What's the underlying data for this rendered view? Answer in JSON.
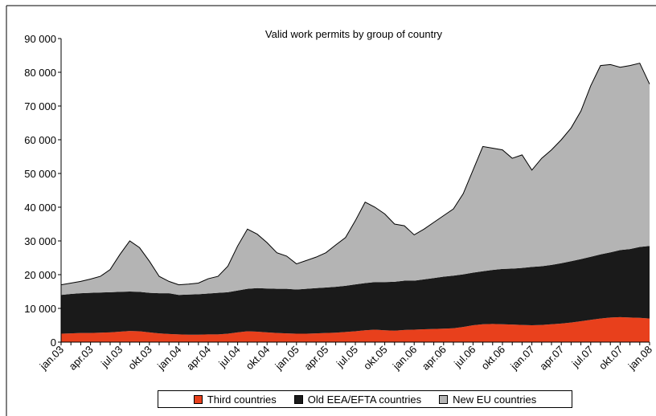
{
  "chart_data": {
    "type": "stacked_area",
    "title": "Valid work permits by group of country",
    "categories": [
      "jan.03",
      null,
      null,
      "apr.03",
      null,
      null,
      "jul.03",
      null,
      null,
      "okt.03",
      null,
      null,
      "jan.04",
      null,
      null,
      "apr.04",
      null,
      null,
      "jul.04",
      null,
      null,
      "okt.04",
      null,
      null,
      "jan.05",
      null,
      null,
      "apr.05",
      null,
      null,
      "jul.05",
      null,
      null,
      "okt.05",
      null,
      null,
      "jan.06",
      null,
      null,
      "apr.06",
      null,
      null,
      "jul.06",
      null,
      null,
      "okt.06",
      null,
      null,
      "jan.07",
      null,
      null,
      "apr.07",
      null,
      null,
      "jul.07",
      null,
      null,
      "okt.07",
      null,
      null,
      "jan.08"
    ],
    "series": [
      {
        "name": "Third countries",
        "color": "#e8401c",
        "values": [
          2500,
          2600,
          2700,
          2700,
          2800,
          2900,
          3100,
          3300,
          3200,
          2900,
          2600,
          2400,
          2300,
          2200,
          2200,
          2300,
          2300,
          2500,
          2900,
          3200,
          3100,
          2900,
          2700,
          2600,
          2500,
          2500,
          2600,
          2700,
          2800,
          3000,
          3200,
          3500,
          3700,
          3500,
          3400,
          3600,
          3700,
          3800,
          3900,
          4000,
          4100,
          4500,
          5000,
          5300,
          5400,
          5300,
          5200,
          5100,
          5000,
          5100,
          5300,
          5500,
          5800,
          6200,
          6600,
          7000,
          7300,
          7400,
          7300,
          7200,
          7000
        ]
      },
      {
        "name": "Old EEA/EFTA countries",
        "color": "#1a1a1a",
        "values": [
          11500,
          11700,
          11800,
          11900,
          11900,
          11900,
          11800,
          11700,
          11700,
          11700,
          11900,
          12100,
          11700,
          11900,
          12000,
          12100,
          12300,
          12300,
          12400,
          12600,
          12900,
          13000,
          13100,
          13200,
          13100,
          13300,
          13400,
          13500,
          13600,
          13700,
          13900,
          14000,
          14100,
          14300,
          14500,
          14600,
          14500,
          14800,
          15100,
          15400,
          15600,
          15600,
          15600,
          15700,
          16000,
          16400,
          16600,
          16900,
          17300,
          17400,
          17600,
          17900,
          18200,
          18400,
          18700,
          19000,
          19300,
          19900,
          20300,
          21000,
          21500
        ]
      },
      {
        "name": "New EU countries",
        "color": "#b4b4b4",
        "values": [
          3000,
          3200,
          3500,
          4100,
          4800,
          6700,
          11100,
          15000,
          13100,
          9400,
          5000,
          3500,
          3000,
          3100,
          3300,
          4400,
          4900,
          7700,
          13200,
          17700,
          16000,
          13600,
          10700,
          9700,
          7600,
          8400,
          9200,
          10300,
          12400,
          14300,
          18900,
          24000,
          22200,
          20200,
          17100,
          16300,
          13600,
          14900,
          16500,
          18100,
          19800,
          23900,
          30400,
          37000,
          36100,
          35300,
          32700,
          33500,
          28700,
          32000,
          34100,
          36600,
          39500,
          43900,
          50700,
          56000,
          55700,
          54200,
          54400,
          54500,
          48000
        ]
      }
    ],
    "ylim": [
      0,
      90000
    ],
    "yticks": [
      0,
      {
        "value": 10000,
        "label": "10 000"
      },
      {
        "value": 20000,
        "label": "20 000"
      },
      {
        "value": 30000,
        "label": "30 000"
      },
      {
        "value": 40000,
        "label": "40 000"
      },
      {
        "value": 50000,
        "label": "50 000"
      },
      {
        "value": 60000,
        "label": "60 000"
      },
      {
        "value": 70000,
        "label": "70 000"
      },
      {
        "value": 80000,
        "label": "80 000"
      },
      {
        "value": 90000,
        "label": "90 000"
      }
    ],
    "grid": false,
    "legend": "bottom"
  }
}
